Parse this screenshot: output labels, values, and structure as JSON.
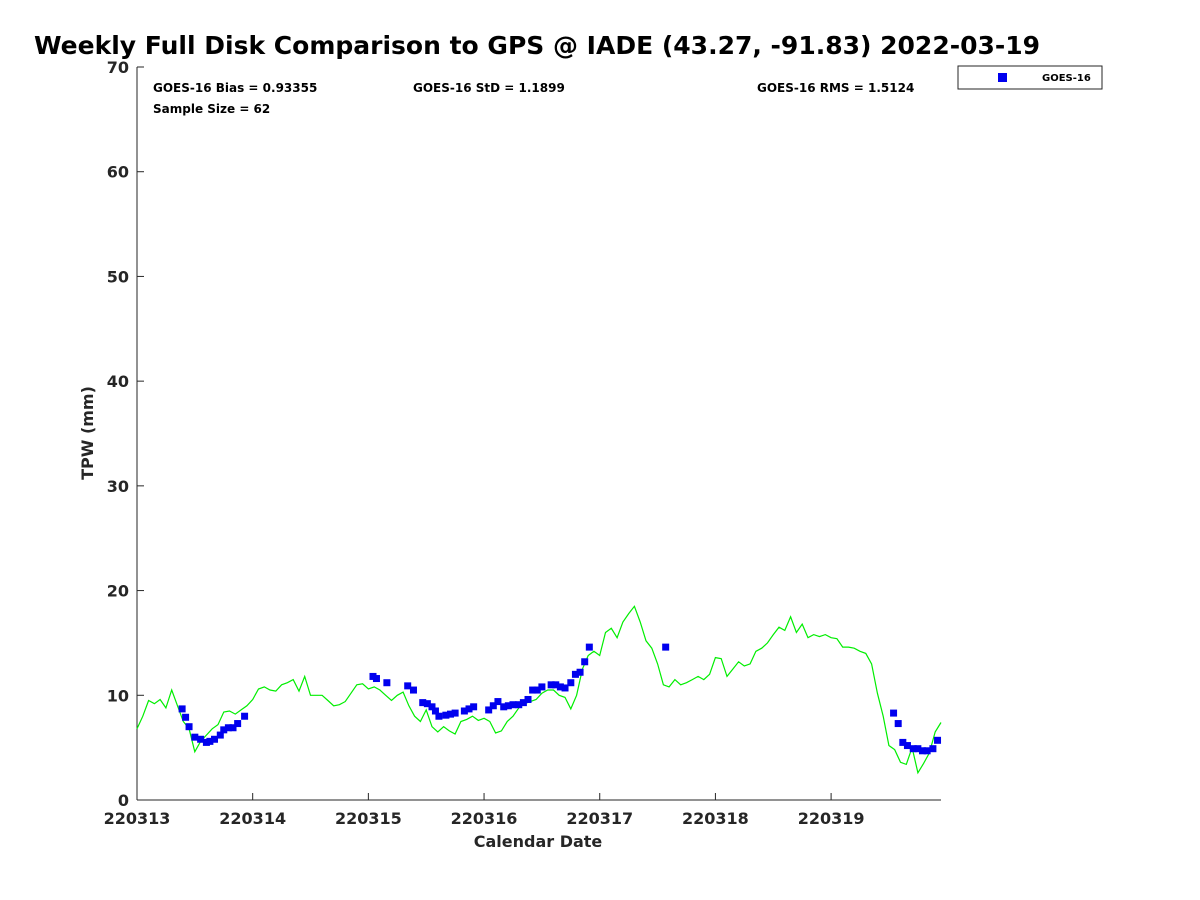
{
  "chart_data": {
    "type": "scatter",
    "title": "Weekly Full Disk Comparison to GPS @ IADE (43.27, -91.83) 2022-03-19",
    "xlabel": "Calendar Date",
    "ylabel": "TPW (mm)",
    "xlim": [
      220313,
      220319.95
    ],
    "ylim": [
      0,
      70
    ],
    "x_ticks": [
      {
        "value": 220313,
        "label": "220313"
      },
      {
        "value": 220314,
        "label": "220314"
      },
      {
        "value": 220315,
        "label": "220315"
      },
      {
        "value": 220316,
        "label": "220316"
      },
      {
        "value": 220317,
        "label": "220317"
      },
      {
        "value": 220318,
        "label": "220318"
      },
      {
        "value": 220319,
        "label": "220319"
      }
    ],
    "y_ticks": [
      {
        "value": 0,
        "label": "0"
      },
      {
        "value": 10,
        "label": "10"
      },
      {
        "value": 20,
        "label": "20"
      },
      {
        "value": 30,
        "label": "30"
      },
      {
        "value": 40,
        "label": "40"
      },
      {
        "value": 50,
        "label": "50"
      },
      {
        "value": 60,
        "label": "60"
      },
      {
        "value": 70,
        "label": "70"
      }
    ],
    "stats": {
      "bias": "GOES-16 Bias = 0.93355",
      "std": "GOES-16 StD = 1.1899",
      "rms": "GOES-16 RMS = 1.5124",
      "sample_size": "Sample Size = 62"
    },
    "legend": {
      "position": "outside-top-right",
      "entries": [
        "GOES-16"
      ]
    },
    "grid": false,
    "series": [
      {
        "name": "GOES-16",
        "style": "square-markers",
        "color": "#0000ee",
        "x": [
          220313.39,
          220313.42,
          220313.45,
          220313.5,
          220313.55,
          220313.6,
          220313.63,
          220313.67,
          220313.72,
          220313.75,
          220313.79,
          220313.83,
          220313.87,
          220313.93,
          220315.04,
          220315.07,
          220315.16,
          220315.34,
          220315.39,
          220315.47,
          220315.51,
          220315.55,
          220315.58,
          220315.61,
          220315.67,
          220315.71,
          220315.75,
          220315.83,
          220315.87,
          220315.91,
          220316.04,
          220316.08,
          220316.12,
          220316.17,
          220316.21,
          220316.25,
          220316.3,
          220316.34,
          220316.38,
          220316.42,
          220316.46,
          220316.5,
          220316.58,
          220316.62,
          220316.66,
          220316.7,
          220316.75,
          220316.79,
          220316.83,
          220316.87,
          220316.91,
          220317.57,
          220319.54,
          220319.58,
          220319.62,
          220319.66,
          220319.71,
          220319.75,
          220319.79,
          220319.83,
          220319.88,
          220319.92
        ],
        "y": [
          8.7,
          7.9,
          7.0,
          6.0,
          5.8,
          5.5,
          5.6,
          5.8,
          6.2,
          6.7,
          6.9,
          6.9,
          7.3,
          8.0,
          11.8,
          11.6,
          11.2,
          10.9,
          10.5,
          9.3,
          9.2,
          8.9,
          8.5,
          8.0,
          8.1,
          8.2,
          8.3,
          8.5,
          8.7,
          8.9,
          8.6,
          9.0,
          9.4,
          8.9,
          9.0,
          9.1,
          9.1,
          9.3,
          9.6,
          10.5,
          10.5,
          10.8,
          11.0,
          11.0,
          10.8,
          10.7,
          11.2,
          12.0,
          12.2,
          13.2,
          14.6,
          14.6,
          8.3,
          7.3,
          5.5,
          5.2,
          4.9,
          4.9,
          4.7,
          4.7,
          4.9,
          5.7
        ]
      },
      {
        "name": "",
        "style": "line",
        "color": "#00ee00",
        "x": [
          220313.0,
          220313.05,
          220313.1,
          220313.15,
          220313.2,
          220313.25,
          220313.3,
          220313.35,
          220313.4,
          220313.45,
          220313.5,
          220313.55,
          220313.6,
          220313.65,
          220313.7,
          220313.75,
          220313.8,
          220313.85,
          220313.9,
          220313.95,
          220314.0,
          220314.05,
          220314.1,
          220314.15,
          220314.2,
          220314.25,
          220314.3,
          220314.35,
          220314.4,
          220314.45,
          220314.5,
          220314.55,
          220314.6,
          220314.65,
          220314.7,
          220314.75,
          220314.8,
          220314.85,
          220314.9,
          220314.95,
          220315.0,
          220315.05,
          220315.1,
          220315.15,
          220315.2,
          220315.25,
          220315.3,
          220315.35,
          220315.4,
          220315.45,
          220315.5,
          220315.55,
          220315.6,
          220315.65,
          220315.7,
          220315.75,
          220315.8,
          220315.85,
          220315.9,
          220315.95,
          220316.0,
          220316.05,
          220316.1,
          220316.15,
          220316.2,
          220316.25,
          220316.3,
          220316.35,
          220316.4,
          220316.45,
          220316.5,
          220316.55,
          220316.6,
          220316.65,
          220316.7,
          220316.75,
          220316.8,
          220316.85,
          220316.9,
          220316.95,
          220317.0,
          220317.05,
          220317.1,
          220317.15,
          220317.2,
          220317.25,
          220317.3,
          220317.35,
          220317.4,
          220317.45,
          220317.5,
          220317.55,
          220317.6,
          220317.65,
          220317.7,
          220317.75,
          220317.8,
          220317.85,
          220317.9,
          220317.95,
          220318.0,
          220318.05,
          220318.1,
          220318.15,
          220318.2,
          220318.25,
          220318.3,
          220318.35,
          220318.4,
          220318.45,
          220318.5,
          220318.55,
          220318.6,
          220318.65,
          220318.7,
          220318.75,
          220318.8,
          220318.85,
          220318.9,
          220318.95,
          220319.0,
          220319.05,
          220319.1,
          220319.15,
          220319.2,
          220319.25,
          220319.3,
          220319.35,
          220319.4,
          220319.45,
          220319.5,
          220319.55,
          220319.6,
          220319.65,
          220319.7,
          220319.75,
          220319.8,
          220319.85,
          220319.9,
          220319.95
        ],
        "y": [
          6.8,
          8.0,
          9.5,
          9.2,
          9.6,
          8.8,
          10.5,
          9.0,
          7.5,
          6.8,
          4.6,
          5.6,
          6.2,
          6.8,
          7.2,
          8.4,
          8.5,
          8.2,
          8.6,
          9.0,
          9.6,
          10.6,
          10.8,
          10.5,
          10.4,
          11.0,
          11.2,
          11.5,
          10.4,
          11.8,
          10.0,
          10.0,
          10.0,
          9.5,
          9.0,
          9.1,
          9.4,
          10.2,
          11.0,
          11.1,
          10.6,
          10.8,
          10.5,
          10.0,
          9.5,
          10.0,
          10.3,
          9.0,
          8.0,
          7.5,
          8.6,
          7.0,
          6.5,
          7.0,
          6.6,
          6.3,
          7.5,
          7.7,
          8.0,
          7.6,
          7.8,
          7.5,
          6.4,
          6.6,
          7.5,
          8.0,
          8.8,
          9.2,
          9.4,
          9.6,
          10.2,
          10.5,
          10.5,
          10.0,
          9.8,
          8.7,
          10.0,
          12.5,
          13.8,
          14.2,
          13.8,
          16.0,
          16.4,
          15.5,
          17.0,
          17.8,
          18.5,
          17.0,
          15.2,
          14.5,
          13.0,
          11.0,
          10.8,
          11.5,
          11.0,
          11.2,
          11.5,
          11.8,
          11.5,
          12.0,
          13.6,
          13.5,
          11.8,
          12.5,
          13.2,
          12.8,
          13.0,
          14.2,
          14.5,
          15.0,
          15.8,
          16.5,
          16.2,
          17.5,
          16.0,
          16.8,
          15.5,
          15.8,
          15.6,
          15.8,
          15.5,
          15.4,
          14.6,
          14.6,
          14.5,
          14.2,
          14.0,
          13.0,
          10.2,
          8.0,
          5.2,
          4.8,
          3.6,
          3.4,
          5.0,
          2.6,
          3.5,
          4.5,
          6.5,
          7.4
        ]
      }
    ]
  }
}
